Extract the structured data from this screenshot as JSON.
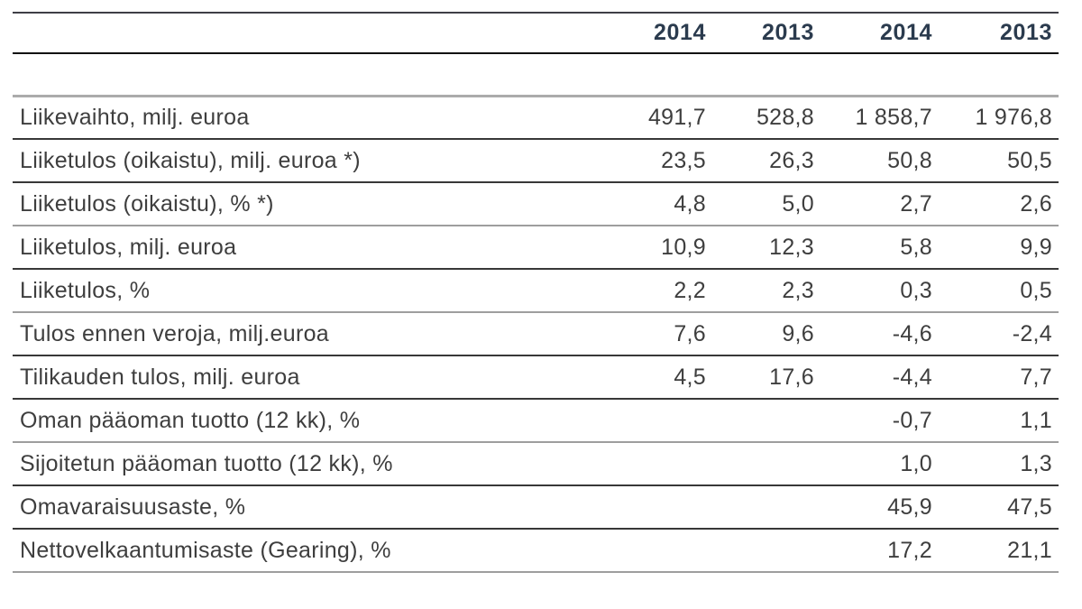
{
  "table": {
    "column_headers": [
      "2014",
      "2013",
      "2014",
      "2013"
    ],
    "rows": [
      {
        "label": "Liikevaihto, milj. euroa",
        "values": [
          "491,7",
          "528,8",
          "1 858,7",
          "1 976,8"
        ]
      },
      {
        "label": "Liiketulos (oikaistu), milj. euroa *)",
        "values": [
          "23,5",
          "26,3",
          "50,8",
          "50,5"
        ]
      },
      {
        "label": "Liiketulos (oikaistu), % *)",
        "values": [
          "4,8",
          "5,0",
          "2,7",
          "2,6"
        ]
      },
      {
        "label": "Liiketulos, milj. euroa",
        "values": [
          "10,9",
          "12,3",
          "5,8",
          "9,9"
        ]
      },
      {
        "label": "Liiketulos, %",
        "values": [
          "2,2",
          "2,3",
          "0,3",
          "0,5"
        ]
      },
      {
        "label": "Tulos ennen veroja, milj.euroa",
        "values": [
          "7,6",
          "9,6",
          "-4,6",
          "-2,4"
        ]
      },
      {
        "label": "Tilikauden tulos, milj. euroa",
        "values": [
          "4,5",
          "17,6",
          "-4,4",
          "7,7"
        ]
      },
      {
        "label": "Oman pääoman tuotto (12 kk), %",
        "values": [
          "",
          "",
          "-0,7",
          "1,1"
        ]
      },
      {
        "label": "Sijoitetun pääoman tuotto (12 kk), %",
        "values": [
          "",
          "",
          "1,0",
          "1,3"
        ]
      },
      {
        "label": "Omavaraisuusaste, %",
        "values": [
          "",
          "",
          "45,9",
          "47,5"
        ]
      },
      {
        "label": "Nettovelkaantumisaste (Gearing), %",
        "values": [
          "",
          "",
          "17,2",
          "21,1"
        ]
      }
    ],
    "colors": {
      "header_text": "#2b3b4e",
      "body_text": "#3e3e3e"
    }
  }
}
